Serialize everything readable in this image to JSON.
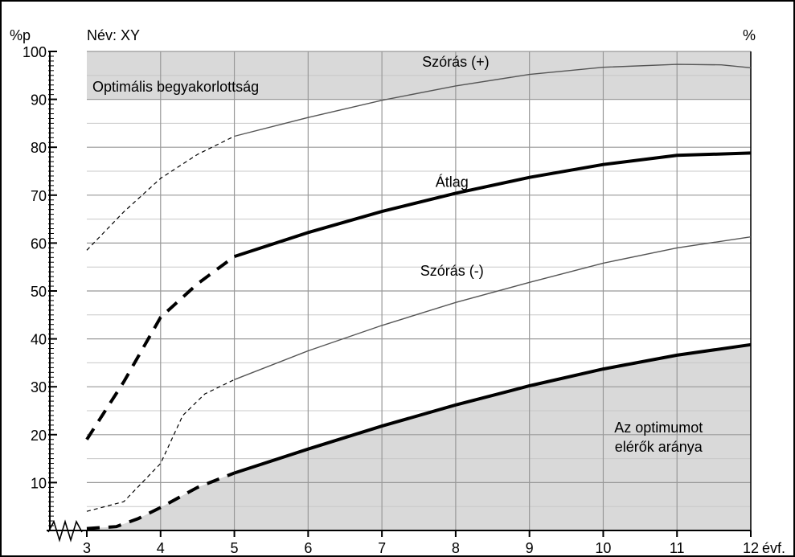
{
  "chart_data": {
    "type": "line",
    "name_label": "Név: XY",
    "left_unit": "%p",
    "right_unit": "%",
    "x_unit": "évf.",
    "xlim": [
      3,
      12
    ],
    "ylim": [
      0,
      100
    ],
    "x_ticks": [
      "3",
      "4",
      "5",
      "6",
      "7",
      "8",
      "9",
      "10",
      "11",
      "12"
    ],
    "y_ticks": [
      "10",
      "20",
      "30",
      "40",
      "50",
      "60",
      "70",
      "80",
      "90",
      "100"
    ],
    "grid": true,
    "optimal_band": {
      "from": 90,
      "to": 100,
      "label": "Optimális begyakorlottság"
    },
    "series": [
      {
        "name": "Szórás (+)",
        "label_at": [
          8.0,
          96.8
        ],
        "dashed": [
          [
            3,
            58.5
          ],
          [
            3.5,
            66.5
          ],
          [
            4,
            73.5
          ],
          [
            4.5,
            78.5
          ],
          [
            5,
            82.3
          ]
        ],
        "solid": [
          [
            5,
            82.3
          ],
          [
            6,
            86.2
          ],
          [
            7,
            89.8
          ],
          [
            8,
            92.8
          ],
          [
            9,
            95.2
          ],
          [
            10,
            96.7
          ],
          [
            11,
            97.3
          ],
          [
            11.6,
            97.2
          ],
          [
            12,
            96.6
          ]
        ]
      },
      {
        "name": "Átlag",
        "label_at": [
          7.95,
          71.7
        ],
        "dashed": [
          [
            3,
            19
          ],
          [
            3.5,
            31
          ],
          [
            4,
            44.5
          ],
          [
            4.5,
            51.5
          ],
          [
            5,
            57.2
          ]
        ],
        "solid": [
          [
            5,
            57.2
          ],
          [
            6,
            62.2
          ],
          [
            7,
            66.6
          ],
          [
            8,
            70.4
          ],
          [
            9,
            73.7
          ],
          [
            10,
            76.4
          ],
          [
            11,
            78.3
          ],
          [
            12,
            78.8
          ]
        ]
      },
      {
        "name": "Szórás (-)",
        "label_at": [
          7.95,
          53.2
        ],
        "dashed": [
          [
            3,
            4
          ],
          [
            3.5,
            6
          ],
          [
            4,
            14
          ],
          [
            4.3,
            24
          ],
          [
            4.6,
            28.5
          ],
          [
            5,
            31.5
          ]
        ],
        "solid": [
          [
            5,
            31.5
          ],
          [
            6,
            37.5
          ],
          [
            7,
            42.8
          ],
          [
            8,
            47.6
          ],
          [
            9,
            51.8
          ],
          [
            10,
            55.8
          ],
          [
            11,
            59
          ],
          [
            12,
            61.3
          ]
        ]
      },
      {
        "name": "Az optimumot elérők aránya",
        "label_lines": [
          "Az optimumot",
          "elérők aránya"
        ],
        "label_at": [
          10.75,
          20.5
        ],
        "dashed": [
          [
            3,
            0.4
          ],
          [
            3.4,
            0.8
          ],
          [
            3.7,
            2.5
          ],
          [
            4,
            4.8
          ],
          [
            4.5,
            9
          ],
          [
            5,
            12
          ]
        ],
        "solid": [
          [
            5,
            12
          ],
          [
            6,
            17
          ],
          [
            7,
            21.8
          ],
          [
            8,
            26.2
          ],
          [
            9,
            30.2
          ],
          [
            10,
            33.7
          ],
          [
            11,
            36.6
          ],
          [
            12,
            38.8
          ]
        ]
      }
    ]
  }
}
